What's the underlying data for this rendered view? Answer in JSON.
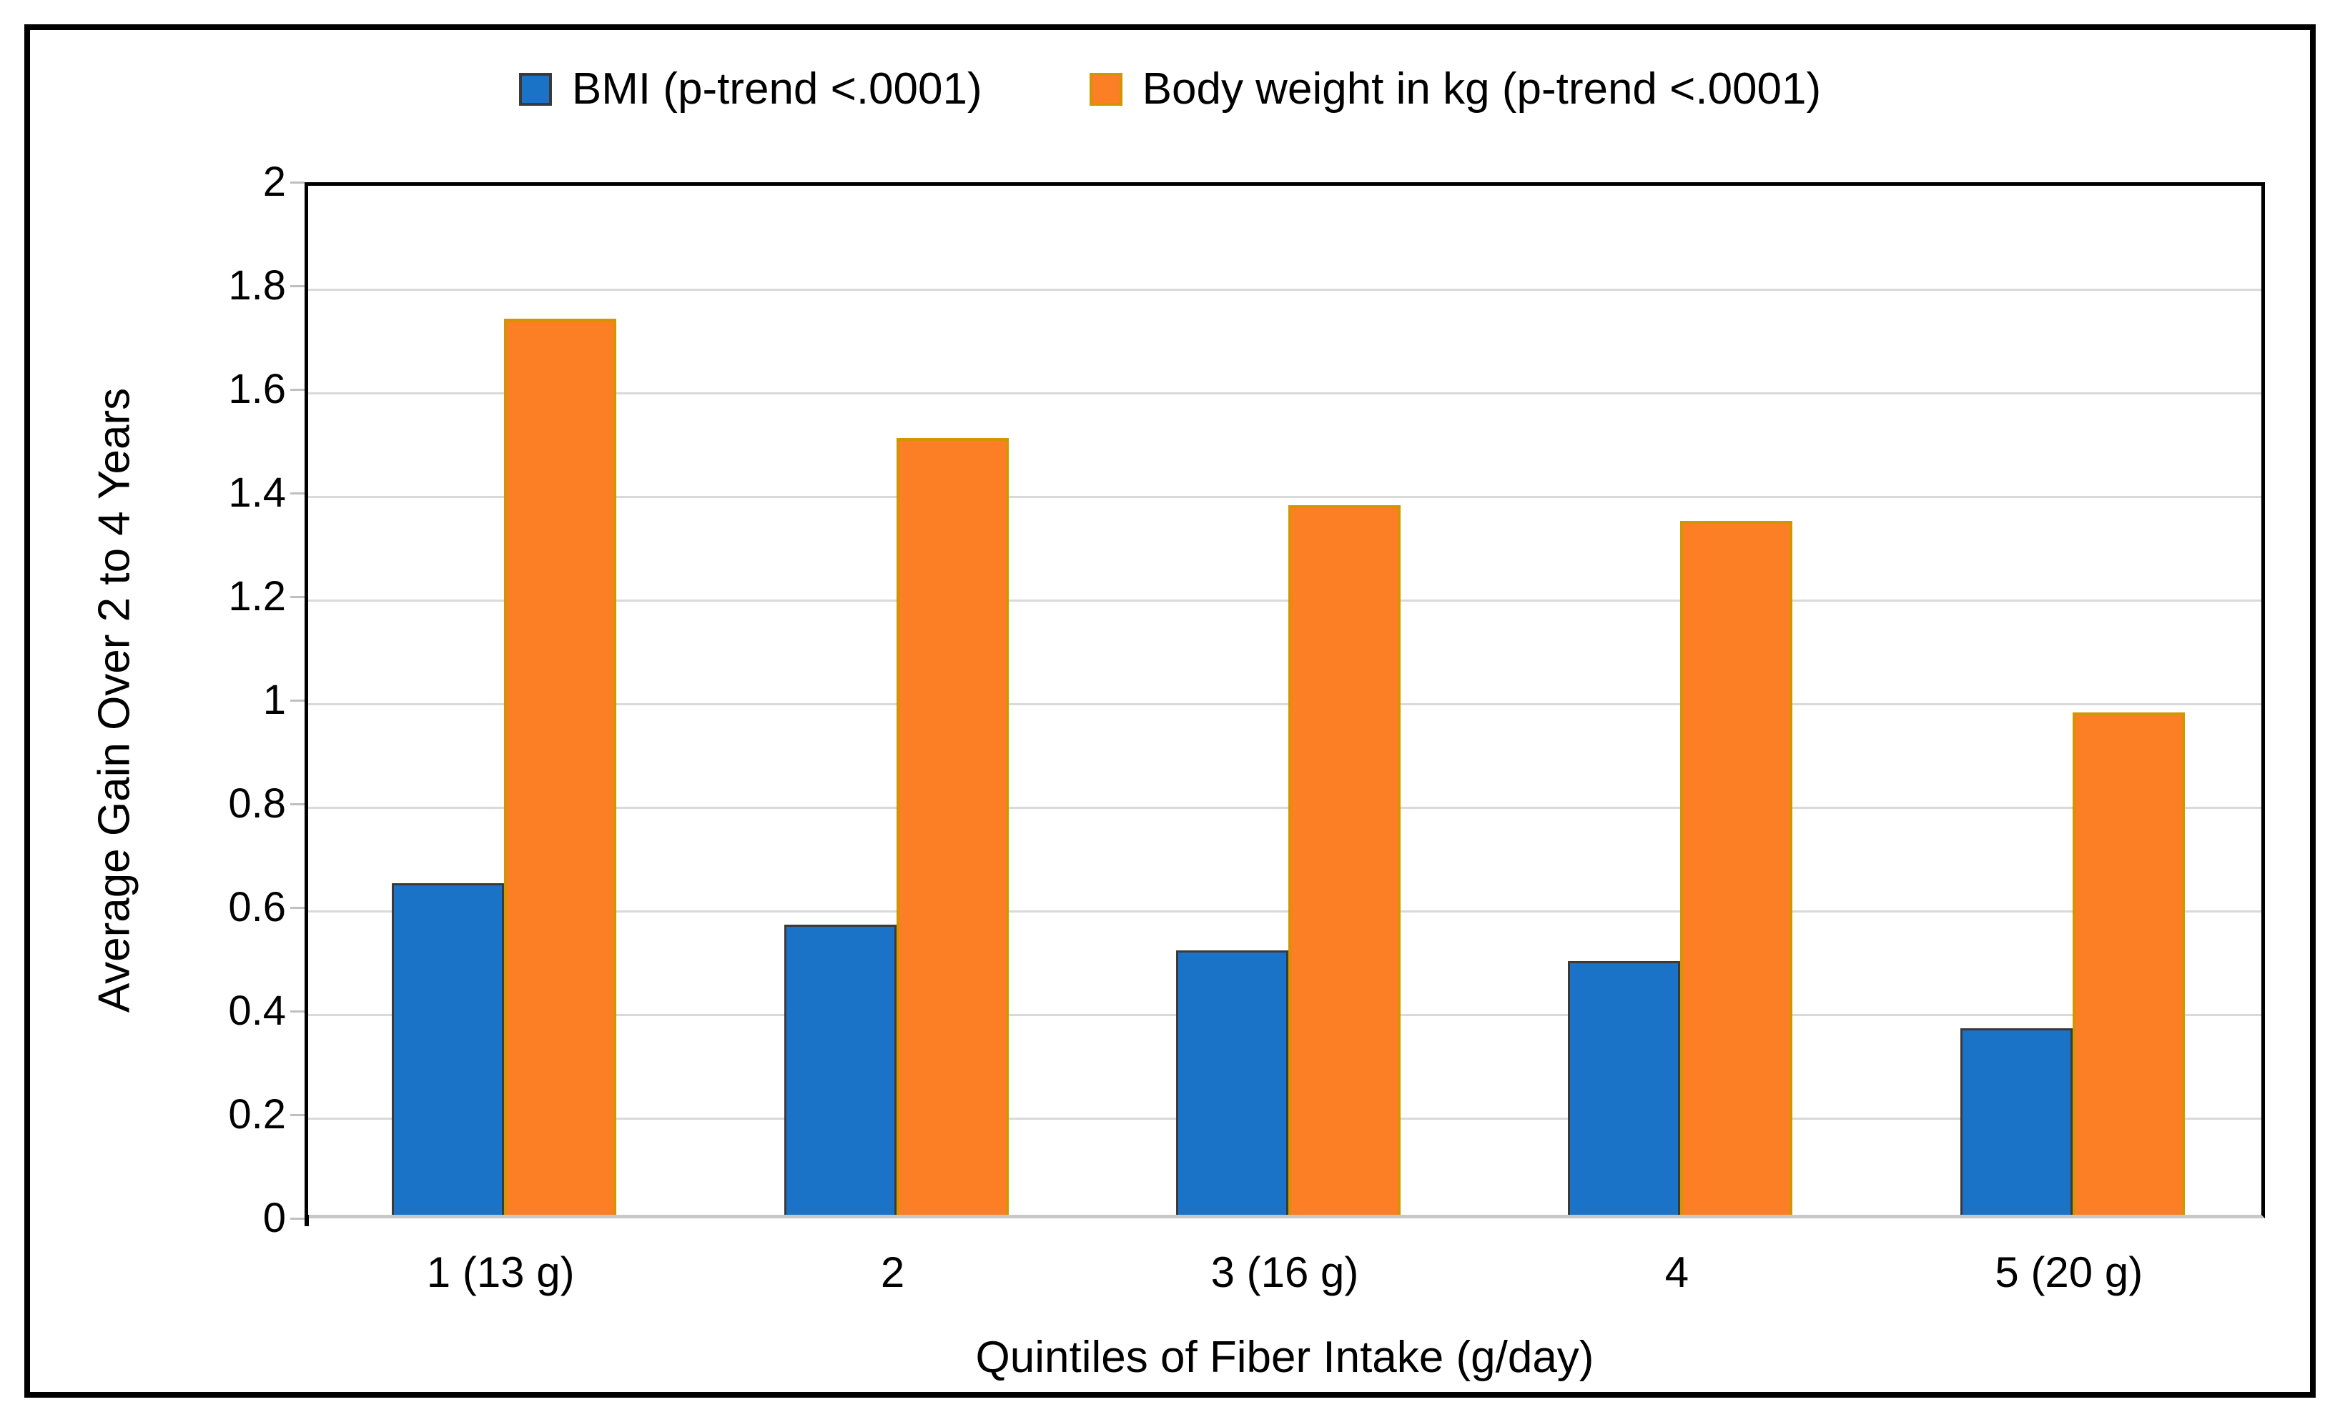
{
  "chart_data": {
    "type": "bar",
    "title": "",
    "categories": [
      "1 (13 g)",
      "2",
      "3 (16 g)",
      "4",
      "5 (20 g)"
    ],
    "series": [
      {
        "key": "bmi",
        "name": "BMI (p-trend <.0001)",
        "color": "#1B73C8",
        "border_color": "#3A3A3A",
        "values": [
          0.64,
          0.56,
          0.51,
          0.49,
          0.36
        ]
      },
      {
        "key": "weight",
        "name": "Body weight in kg (p-trend <.0001)",
        "color": "#FC7E25",
        "border_color": "#D39500",
        "values": [
          1.73,
          1.5,
          1.37,
          1.34,
          0.97
        ]
      }
    ],
    "xlabel": "Quintiles of Fiber Intake (g/day)",
    "ylabel": "Average Gain Over 2 to 4 Years",
    "ylim": [
      0,
      2
    ],
    "ytick_values": [
      0,
      0.2,
      0.4,
      0.6,
      0.8,
      1,
      1.2,
      1.4,
      1.6,
      1.8,
      2
    ],
    "ytick_labels": [
      "0",
      "0.2",
      "0.4",
      "0.6",
      "0.8",
      "1",
      "1.2",
      "1.4",
      "1.6",
      "1.8",
      "2"
    ],
    "grid": "horizontal",
    "legend_position": "top",
    "gridline_color": "#D9D9D9",
    "axis_line_color": "#000000"
  }
}
